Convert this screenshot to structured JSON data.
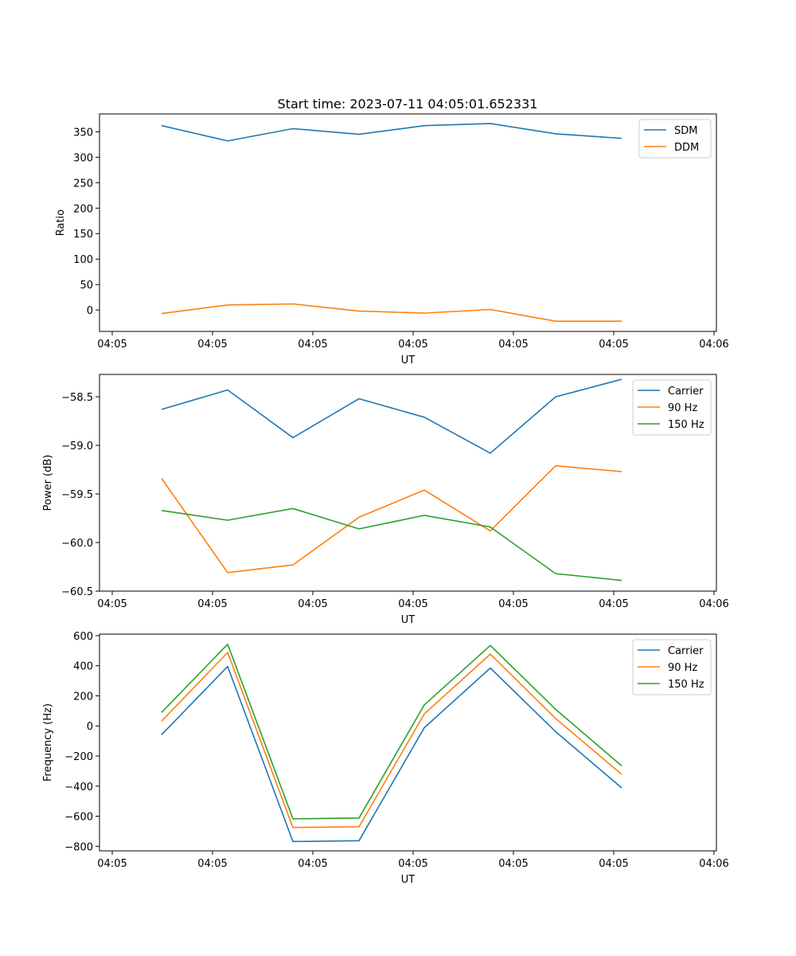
{
  "title": "Start time: 2023-07-11 04:05:01.652331",
  "colors": {
    "c0": "#1f77b4",
    "c1": "#ff7f0e",
    "c2": "#2ca02c"
  },
  "chart_data": [
    {
      "type": "line",
      "ylabel": "Ratio",
      "xlabel": "UT",
      "x_tick_labels": [
        "04:05",
        "04:05",
        "04:05",
        "04:05",
        "04:05",
        "04:05",
        "04:06"
      ],
      "y_ticks": [
        0,
        50,
        100,
        150,
        200,
        250,
        300,
        350
      ],
      "y_tick_labels": [
        "0",
        "50",
        "100",
        "150",
        "200",
        "250",
        "300",
        "350"
      ],
      "ylim": [
        -42,
        385
      ],
      "legend_position": "top-right",
      "series": [
        {
          "name": "SDM",
          "color": "#1f77b4",
          "values": [
            362,
            332,
            356,
            345,
            362,
            366,
            346,
            337
          ]
        },
        {
          "name": "DDM",
          "color": "#ff7f0e",
          "values": [
            -7,
            10,
            12,
            -2,
            -6,
            1,
            -22,
            -22
          ]
        }
      ]
    },
    {
      "type": "line",
      "ylabel": "Power (dB)",
      "xlabel": "UT",
      "x_tick_labels": [
        "04:05",
        "04:05",
        "04:05",
        "04:05",
        "04:05",
        "04:05",
        "04:06"
      ],
      "y_ticks": [
        -60.5,
        -60.0,
        -59.5,
        -59.0,
        -58.5
      ],
      "y_tick_labels": [
        "−60.5",
        "−60.0",
        "−59.5",
        "−59.0",
        "−58.5"
      ],
      "ylim": [
        -60.5,
        -58.27
      ],
      "legend_position": "top-right",
      "series": [
        {
          "name": "Carrier",
          "color": "#1f77b4",
          "values": [
            -58.63,
            -58.43,
            -58.92,
            -58.52,
            -58.71,
            -59.08,
            -58.5,
            -58.32
          ]
        },
        {
          "name": "90 Hz",
          "color": "#ff7f0e",
          "values": [
            -59.34,
            -60.31,
            -60.23,
            -59.74,
            -59.46,
            -59.88,
            -59.21,
            -59.27
          ]
        },
        {
          "name": "150 Hz",
          "color": "#2ca02c",
          "values": [
            -59.67,
            -59.77,
            -59.65,
            -59.86,
            -59.72,
            -59.84,
            -60.32,
            -60.39
          ]
        }
      ]
    },
    {
      "type": "line",
      "ylabel": "Frequency (Hz)",
      "xlabel": "UT",
      "x_tick_labels": [
        "04:05",
        "04:05",
        "04:05",
        "04:05",
        "04:05",
        "04:05",
        "04:06"
      ],
      "y_ticks": [
        -800,
        -600,
        -400,
        -200,
        0,
        200,
        400,
        600
      ],
      "y_tick_labels": [
        "−800",
        "−600",
        "−400",
        "−200",
        "0",
        "200",
        "400",
        "600"
      ],
      "ylim": [
        -830,
        610
      ],
      "legend_position": "top-right",
      "series": [
        {
          "name": "Carrier",
          "color": "#1f77b4",
          "values": [
            -58,
            395,
            -768,
            -763,
            -12,
            385,
            -38,
            -412
          ]
        },
        {
          "name": "90 Hz",
          "color": "#ff7f0e",
          "values": [
            32,
            488,
            -675,
            -670,
            80,
            477,
            50,
            -322
          ]
        },
        {
          "name": "150 Hz",
          "color": "#2ca02c",
          "values": [
            90,
            543,
            -617,
            -612,
            140,
            535,
            110,
            -265
          ]
        }
      ]
    }
  ]
}
